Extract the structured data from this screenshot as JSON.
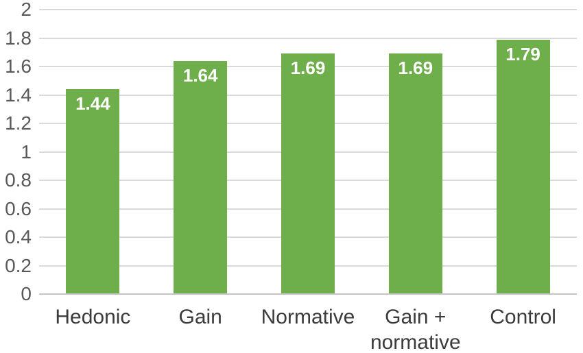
{
  "chart_data": {
    "type": "bar",
    "title": "",
    "xlabel": "",
    "ylabel": "",
    "categories": [
      "Hedonic",
      "Gain",
      "Normative",
      "Gain + normative",
      "Control"
    ],
    "values": [
      1.44,
      1.64,
      1.69,
      1.69,
      1.79
    ],
    "data_labels": [
      "1.44",
      "1.64",
      "1.69",
      "1.69",
      "1.79"
    ],
    "ylim": [
      0,
      2
    ],
    "y_ticks": [
      0,
      0.2,
      0.4,
      0.6,
      0.8,
      1,
      1.2,
      1.4,
      1.6,
      1.8,
      2
    ],
    "y_tick_labels": [
      "0",
      "0.2",
      "0.4",
      "0.6",
      "0.8",
      "1",
      "1.2",
      "1.4",
      "1.6",
      "1.8",
      "2"
    ],
    "grid": true,
    "legend": false,
    "colors": {
      "bar_fill": "#6EAE4B",
      "data_label_text": "#ffffff",
      "y_tick_text": "#595959",
      "x_category_text": "#3b3b3b",
      "gridline": "#d9d9d9",
      "axis_line": "#c6c6c6",
      "background": "#ffffff"
    }
  }
}
